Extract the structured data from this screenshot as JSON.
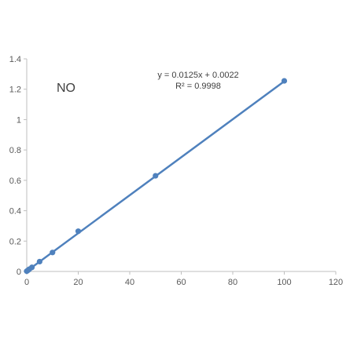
{
  "chart_data": {
    "type": "scatter",
    "label": "NO",
    "equation": "y = 0.0125x + 0.0022",
    "r_squared": "R² = 0.9998",
    "xlim": [
      0,
      120
    ],
    "ylim": [
      0,
      1.4
    ],
    "x_ticks": [
      0,
      20,
      40,
      60,
      80,
      100,
      120
    ],
    "y_ticks": [
      0,
      0.2,
      0.4,
      0.6,
      0.8,
      1,
      1.2,
      1.4
    ],
    "x_tick_labels": [
      "0",
      "20",
      "40",
      "60",
      "80",
      "100",
      "120"
    ],
    "y_tick_labels": [
      "0",
      "0.2",
      "0.4",
      "0.6",
      "0.8",
      "1",
      "1.2",
      "1.4"
    ],
    "grid": false,
    "series": [
      {
        "x": [
          0,
          0.5,
          1,
          2,
          5,
          10,
          20,
          50,
          100
        ],
        "y": [
          0.002,
          0.008,
          0.015,
          0.027,
          0.065,
          0.125,
          0.265,
          0.63,
          1.255
        ],
        "color": "#4f81bd",
        "trendline": {
          "slope": 0.0125,
          "intercept": 0.0022,
          "x_range": [
            0,
            100
          ]
        }
      }
    ]
  }
}
